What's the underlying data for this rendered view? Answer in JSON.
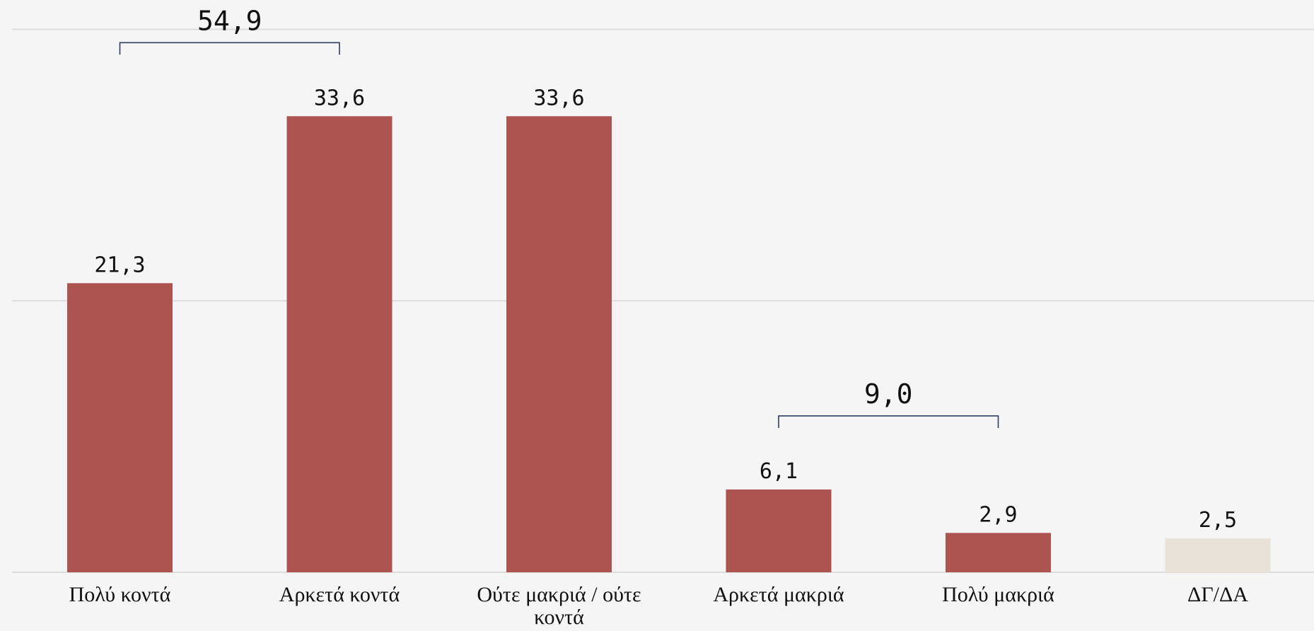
{
  "chart_data": {
    "type": "bar",
    "categories": [
      "Πολύ κοντά",
      "Αρκετά κοντά",
      "Ούτε μακριά / ούτε κοντά",
      "Αρκετά μακριά",
      "Πολύ μακριά",
      "ΔΓ/ΔΑ"
    ],
    "values": [
      21.3,
      33.6,
      33.6,
      6.1,
      2.9,
      2.5
    ],
    "value_labels": [
      "21,3",
      "33,6",
      "33,6",
      "6,1",
      "2,9",
      "2,5"
    ],
    "colors": [
      "#ad5350",
      "#ad5350",
      "#ad5350",
      "#ad5350",
      "#ad5350",
      "#e8e2d8"
    ],
    "ylim": [
      0,
      40
    ],
    "yticks": [
      0,
      20,
      40
    ],
    "grid": true,
    "brackets": [
      {
        "categories": [
          "Πολύ κοντά",
          "Αρκετά κοντά"
        ],
        "value": 54.9,
        "label": "54,9"
      },
      {
        "categories": [
          "Αρκετά μακριά",
          "Πολύ μακριά"
        ],
        "value": 9.0,
        "label": "9,0"
      }
    ]
  }
}
